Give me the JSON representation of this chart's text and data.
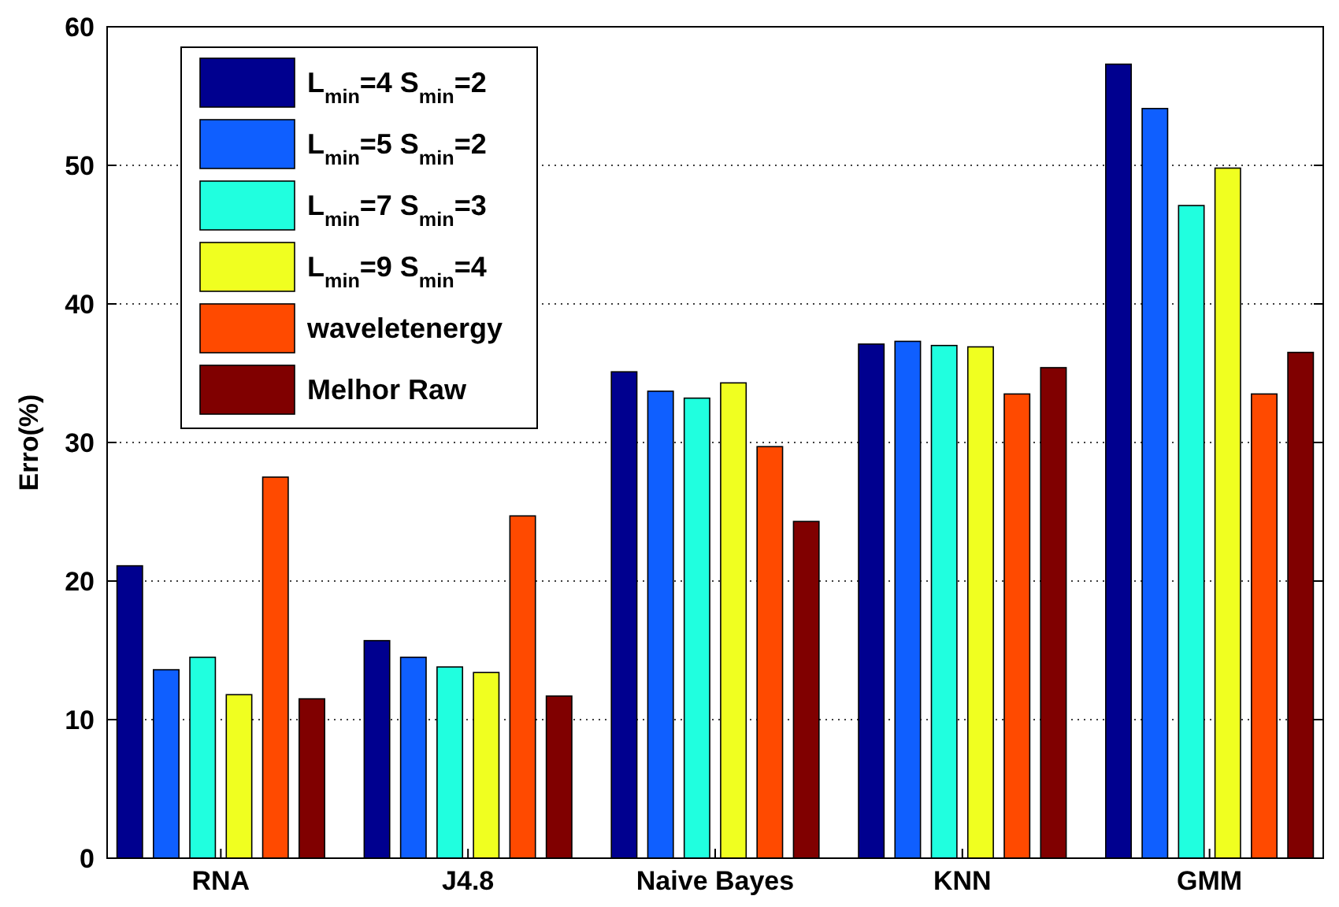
{
  "chart_data": {
    "type": "bar",
    "ylabel": "Erro(%)",
    "categories": [
      "RNA",
      "J4.8",
      "Naive Bayes",
      "KNN",
      "GMM"
    ],
    "series": [
      {
        "name": "L$_{min}$=4 S$_{min}$=2",
        "color": "#00008f",
        "values": [
          21.1,
          15.7,
          35.1,
          37.1,
          57.3
        ]
      },
      {
        "name": "L$_{min}$=5 S$_{min}$=2",
        "color": "#0f5fff",
        "values": [
          13.6,
          14.5,
          33.7,
          37.3,
          54.1
        ]
      },
      {
        "name": "L$_{min}$=7 S$_{min}$=3",
        "color": "#20ffdf",
        "values": [
          14.5,
          13.8,
          33.2,
          37.0,
          47.1
        ]
      },
      {
        "name": "L$_{min}$=9 S$_{min}$=4",
        "color": "#f0ff20",
        "values": [
          11.8,
          13.4,
          34.3,
          36.9,
          49.8
        ]
      },
      {
        "name": "waveletenergy",
        "color": "#ff4a00",
        "values": [
          27.5,
          24.7,
          29.7,
          33.5,
          33.5
        ]
      },
      {
        "name": "Melhor Raw",
        "color": "#800000",
        "values": [
          11.5,
          11.7,
          24.3,
          35.4,
          36.5
        ]
      }
    ],
    "ylim": [
      0,
      60
    ],
    "yticks": [
      0,
      10,
      20,
      30,
      40,
      50,
      60
    ],
    "grid": "y",
    "legend": "top left"
  }
}
